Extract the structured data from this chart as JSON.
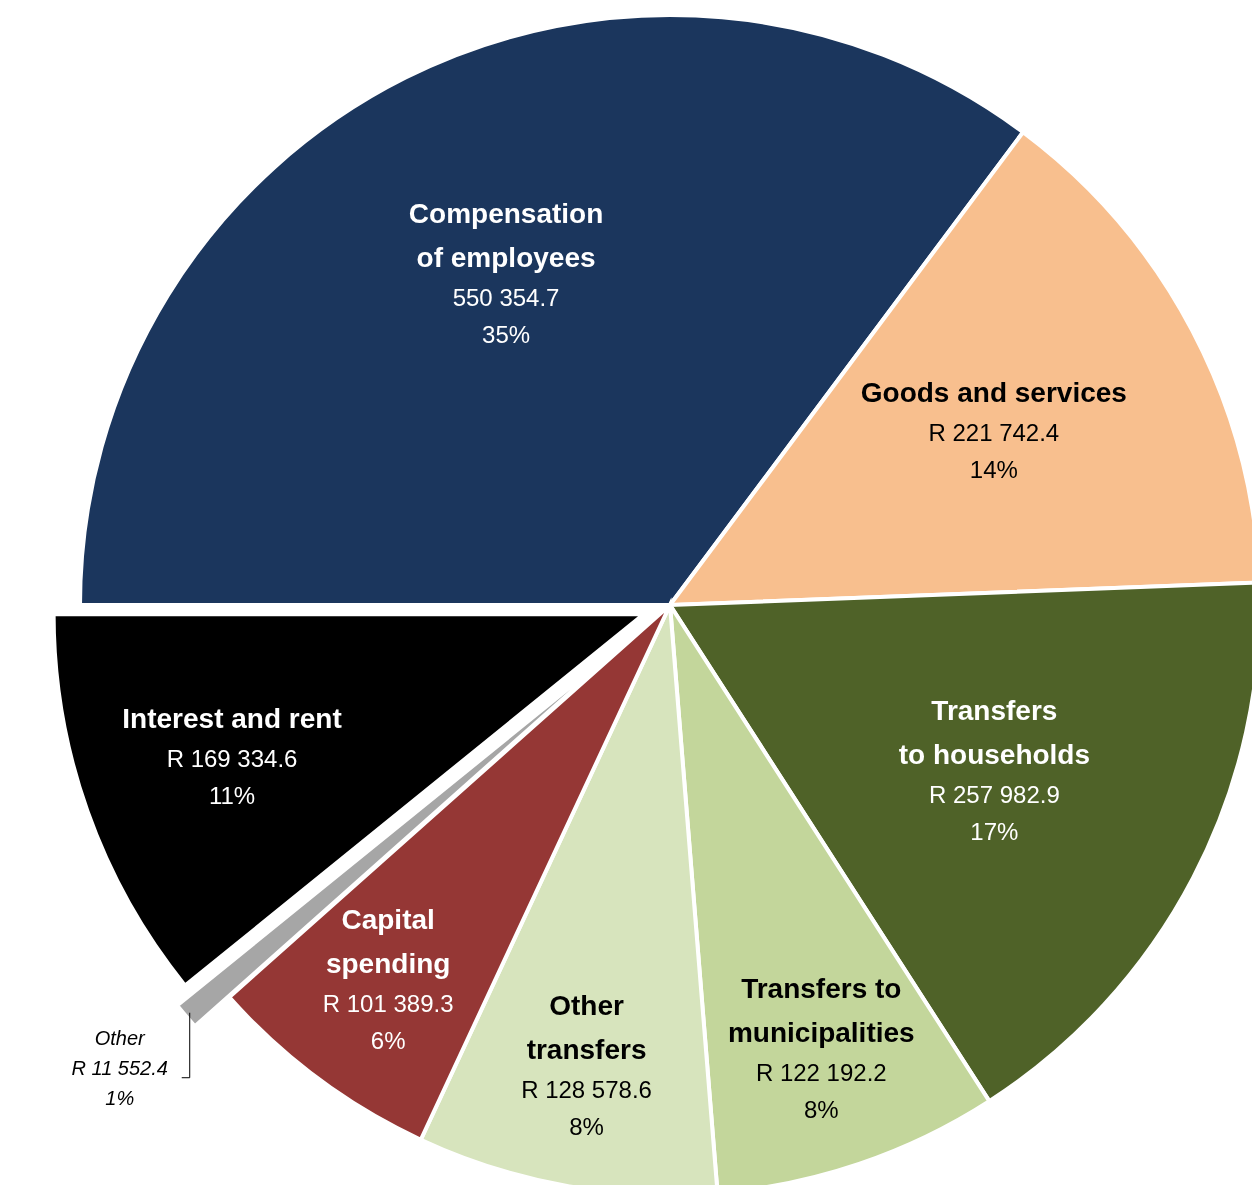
{
  "chart_data": {
    "type": "pie",
    "categories": [
      "Compensation\nof employees",
      "Goods and services",
      "Transfers\nto households",
      "Transfers to\nmunicipalities",
      "Other\ntransfers",
      "Capital\nspending",
      "Other",
      "Interest and rent"
    ],
    "values": [
      550354.7,
      221742.4,
      257982.9,
      122192.2,
      128578.6,
      101389.3,
      11552.4,
      169334.6
    ],
    "colors": [
      "#1b365d",
      "#f8bf8e",
      "#4f6228",
      "#c3d69b",
      "#d7e4bd",
      "#953735",
      "#a6a6a6",
      "#000000"
    ],
    "value_labels": [
      "550 354.7\n35%",
      "R 221 742.4\n14%",
      "R 257 982.9\n17%",
      "R 122 192.2\n8%",
      "R 128 578.6\n8%",
      "R 101 389.3\n6%",
      "R 11 552.4\n1%",
      "R 169 334.6\n11%"
    ],
    "legend": false
  }
}
